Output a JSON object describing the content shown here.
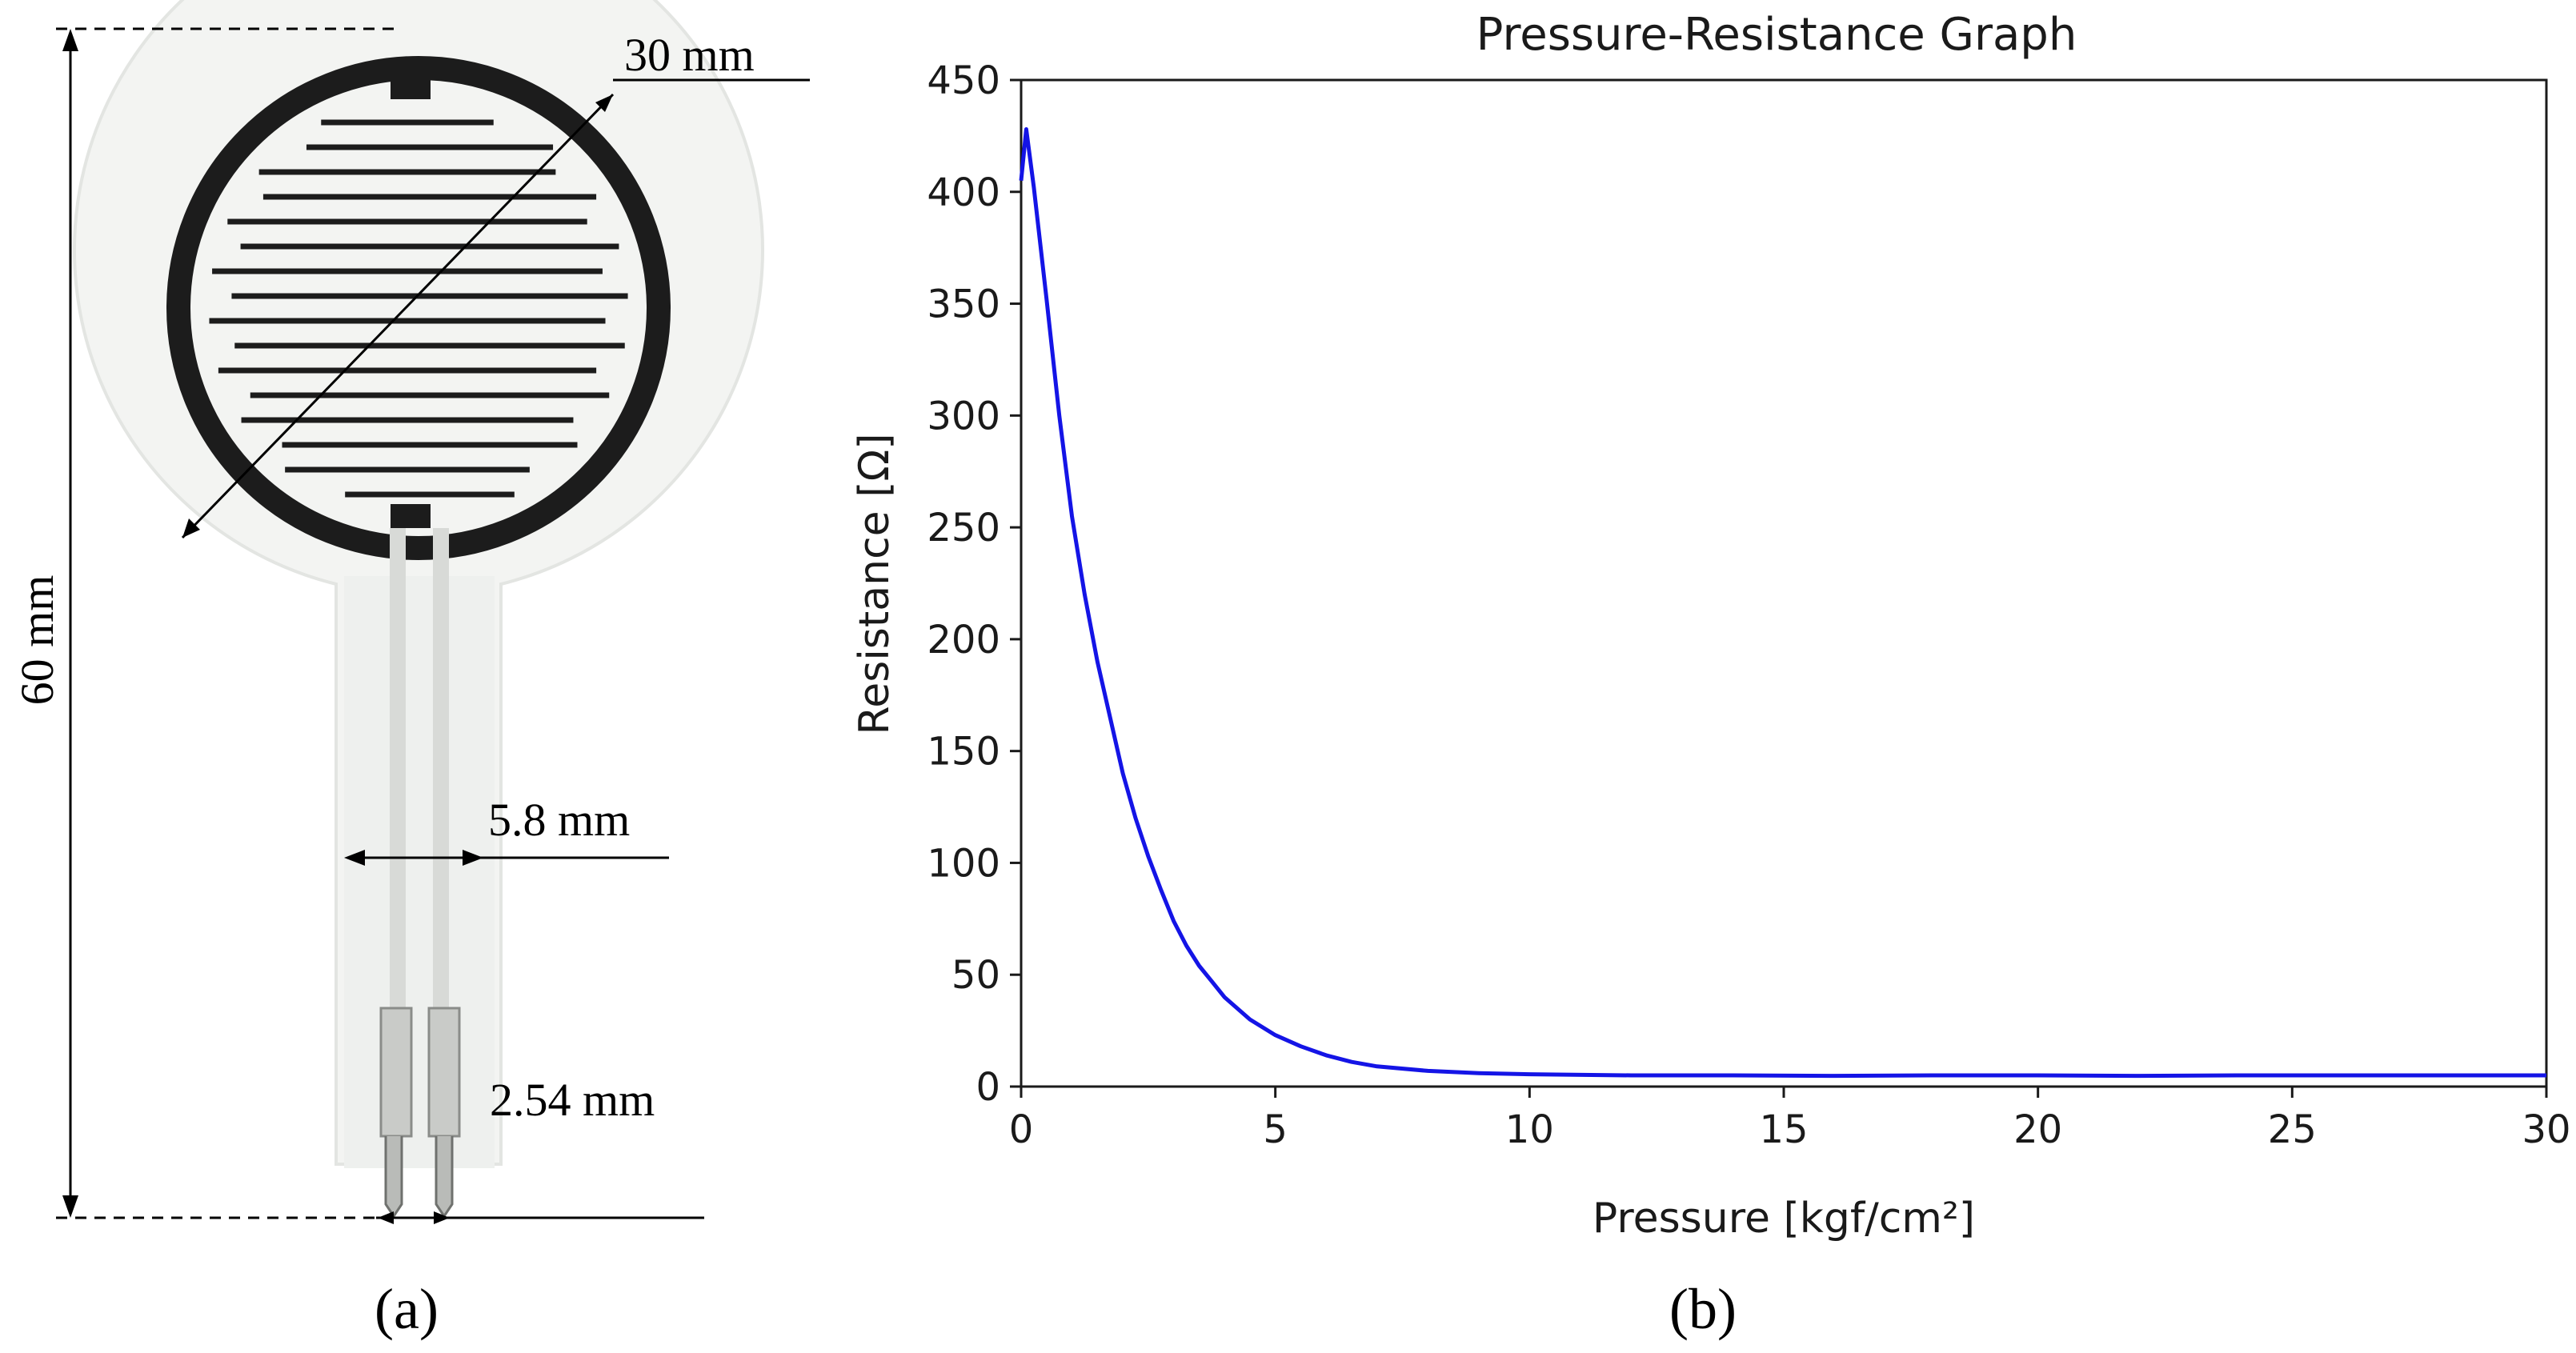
{
  "panel_a": {
    "label": "(a)",
    "dimensions": {
      "diameter": "30 mm",
      "length": "60 mm",
      "width": "5.8 mm",
      "pin_pitch": "2.54 mm"
    }
  },
  "panel_b": {
    "label": "(b)"
  },
  "colors": {
    "series": "#1414e6",
    "axis": "#1a1a1a",
    "sensor_ink": "#1c1c1c",
    "sensor_film": "#f3f4f2"
  },
  "chart_data": {
    "type": "line",
    "title": "Pressure-Resistance Graph",
    "xlabel": "Pressure [kgf/cm²]",
    "ylabel": "Resistance [Ω]",
    "xlim": [
      0,
      30
    ],
    "ylim": [
      0,
      450
    ],
    "xticks": [
      0,
      5,
      10,
      15,
      20,
      25,
      30
    ],
    "yticks": [
      0,
      50,
      100,
      150,
      200,
      250,
      300,
      350,
      400,
      450
    ],
    "grid": false,
    "series": [
      {
        "name": "Resistance",
        "color": "#1414e6",
        "x": [
          0,
          0.1,
          0.25,
          0.5,
          0.75,
          1,
          1.25,
          1.5,
          1.75,
          2,
          2.25,
          2.5,
          2.75,
          3,
          3.25,
          3.5,
          3.75,
          4,
          4.5,
          5,
          5.5,
          6,
          6.5,
          7,
          8,
          9,
          10,
          12,
          14,
          16,
          18,
          20,
          22,
          24,
          26,
          28,
          30
        ],
        "y": [
          405,
          428,
          402,
          352,
          300,
          255,
          220,
          190,
          165,
          140,
          120,
          103,
          88,
          74,
          63,
          54,
          47,
          40,
          30,
          23,
          18,
          14,
          11,
          9,
          7,
          6,
          5.5,
          5,
          5,
          4.8,
          5,
          5,
          4.8,
          5,
          5,
          5,
          5
        ]
      }
    ]
  }
}
